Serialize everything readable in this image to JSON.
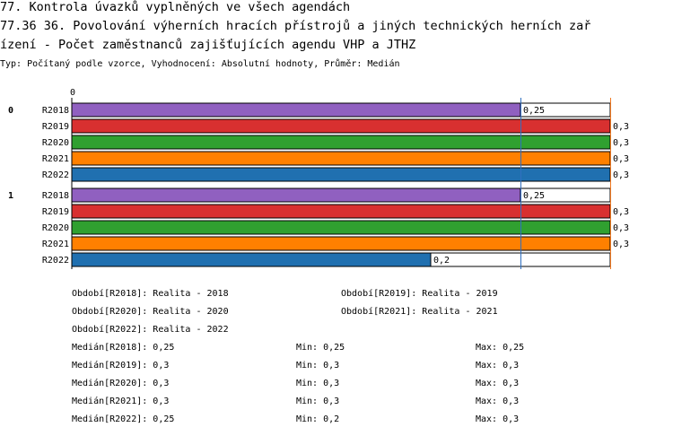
{
  "header": {
    "line1": "77. Kontrola úvazků vyplněných ve všech agendách",
    "line2": "77.36 36. Povolování výherních hracích přístrojů a jiných technických herních zař",
    "line3": "ízení - Počet zaměstnanců zajišťujících agendu VHP a JTHZ",
    "subtitle": "Typ: Počítaný podle vzorce, Vyhodnocení: Absolutní hodnoty, Průměr: Medián"
  },
  "chart_data": {
    "type": "bar",
    "orientation": "horizontal",
    "axis_zero_label": "0",
    "xlim": [
      0,
      0.3
    ],
    "marker_lines": [
      {
        "name": "median",
        "value": 0.25,
        "color": "#3070c0"
      },
      {
        "name": "max",
        "value": 0.3,
        "color": "#f07820"
      }
    ],
    "groups": [
      {
        "label": "0",
        "bars": [
          {
            "category": "R2018",
            "value": 0.25,
            "value_label": "0,25",
            "color": "#9060c0"
          },
          {
            "category": "R2019",
            "value": 0.3,
            "value_label": "0,3",
            "color": "#d83030"
          },
          {
            "category": "R2020",
            "value": 0.3,
            "value_label": "0,3",
            "color": "#30a030"
          },
          {
            "category": "R2021",
            "value": 0.3,
            "value_label": "0,3",
            "color": "#ff8000"
          },
          {
            "category": "R2022",
            "value": 0.3,
            "value_label": "0,3",
            "color": "#2070b0"
          }
        ]
      },
      {
        "label": "1",
        "bars": [
          {
            "category": "R2018",
            "value": 0.25,
            "value_label": "0,25",
            "color": "#9060c0"
          },
          {
            "category": "R2019",
            "value": 0.3,
            "value_label": "0,3",
            "color": "#d83030"
          },
          {
            "category": "R2020",
            "value": 0.3,
            "value_label": "0,3",
            "color": "#30a030"
          },
          {
            "category": "R2021",
            "value": 0.3,
            "value_label": "0,3",
            "color": "#ff8000"
          },
          {
            "category": "R2022",
            "value": 0.2,
            "value_label": "0,2",
            "color": "#2070b0"
          }
        ]
      }
    ]
  },
  "legend": {
    "periods": [
      "Období[R2018]: Realita - 2018",
      "Období[R2019]: Realita - 2019",
      "Období[R2020]: Realita - 2020",
      "Období[R2021]: Realita - 2021",
      "Období[R2022]: Realita - 2022"
    ],
    "stats": [
      {
        "median": "Medián[R2018]: 0,25",
        "min": "Min: 0,25",
        "max": "Max: 0,25"
      },
      {
        "median": "Medián[R2019]: 0,3",
        "min": "Min: 0,3",
        "max": "Max: 0,3"
      },
      {
        "median": "Medián[R2020]: 0,3",
        "min": "Min: 0,3",
        "max": "Max: 0,3"
      },
      {
        "median": "Medián[R2021]: 0,3",
        "min": "Min: 0,3",
        "max": "Max: 0,3"
      },
      {
        "median": "Medián[R2022]: 0,25",
        "min": "Min: 0,2",
        "max": "Max: 0,3"
      }
    ]
  }
}
